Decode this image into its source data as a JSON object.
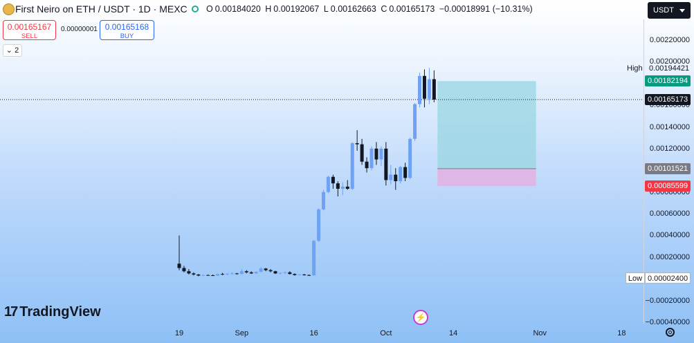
{
  "header": {
    "title": "First Neiro on ETH / USDT · 1D · MEXC",
    "ohlc": {
      "open_label": "O",
      "open": "0.00184020",
      "high_label": "H",
      "high": "0.00192067",
      "low_label": "L",
      "low": "0.00162663",
      "close_label": "C",
      "close": "0.00165173",
      "change": "−0.00018991 (−10.31%)"
    },
    "currency": "USDT"
  },
  "trade": {
    "sell_price": "0.00165167",
    "sell_label": "SELL",
    "spread": "0.00000001",
    "buy_price": "0.00165168",
    "buy_label": "BUY"
  },
  "indicators_toggle": "2",
  "branding": {
    "logo_text": "TradingView",
    "logo_mark": "17"
  },
  "price_tags": {
    "high_label": "High",
    "high": "0.00194421",
    "target": "0.00182194",
    "current": "0.00165173",
    "entry": "0.00101521",
    "stop": "0.00085599",
    "low_label": "Low",
    "low": "0.00002400"
  },
  "colors": {
    "up": "#6fa1f5",
    "down": "#131722",
    "target_tag": "#089981",
    "stop_tag": "#f23645",
    "entry_tag": "#787b86",
    "profit_zone": "#98d6e2",
    "loss_zone": "#e5aee0"
  },
  "chart_data": {
    "type": "candlestick",
    "y_ticks": [
      "0.00220000",
      "0.00200000",
      "0.00180000",
      "0.00160000",
      "0.00140000",
      "0.00120000",
      "0.00100000",
      "0.00080000",
      "0.00060000",
      "0.00040000",
      "0.00020000",
      "0.00000000",
      "−0.00020000",
      "−0.00040000"
    ],
    "x_ticks": [
      {
        "label": "19",
        "x_index": 0
      },
      {
        "label": "Sep",
        "x_index": 13
      },
      {
        "label": "16",
        "x_index": 28
      },
      {
        "label": "Oct",
        "x_index": 43
      },
      {
        "label": "14",
        "x_index": 57
      },
      {
        "label": "Nov",
        "x_index": 75
      },
      {
        "label": "18",
        "x_index": 92
      }
    ],
    "ylim": [
      -0.0004,
      0.0022
    ],
    "candles": [
      [
        0,
        0.00014,
        0.0004,
        8e-05,
        0.0001
      ],
      [
        1,
        0.0001,
        0.00012,
        6e-05,
        7e-05
      ],
      [
        2,
        7e-05,
        9e-05,
        4e-05,
        5e-05
      ],
      [
        3,
        5e-05,
        6e-05,
        3e-05,
        4e-05
      ],
      [
        4,
        4e-05,
        4.5e-05,
        2.4e-05,
        3e-05
      ],
      [
        5,
        3e-05,
        4e-05,
        2.5e-05,
        3.5e-05
      ],
      [
        6,
        3.5e-05,
        4e-05,
        3e-05,
        3.3e-05
      ],
      [
        7,
        3.3e-05,
        4e-05,
        2.8e-05,
        3e-05
      ],
      [
        8,
        3e-05,
        5e-05,
        2.5e-05,
        4.5e-05
      ],
      [
        9,
        4.5e-05,
        5.5e-05,
        3.5e-05,
        4e-05
      ],
      [
        10,
        4e-05,
        5e-05,
        3.5e-05,
        4.8e-05
      ],
      [
        11,
        4.8e-05,
        6e-05,
        4e-05,
        5e-05
      ],
      [
        12,
        5e-05,
        5.5e-05,
        4e-05,
        4.5e-05
      ],
      [
        13,
        4.5e-05,
        9e-05,
        4e-05,
        7e-05
      ],
      [
        14,
        7e-05,
        8e-05,
        5e-05,
        6e-05
      ],
      [
        15,
        6e-05,
        7e-05,
        4.5e-05,
        5e-05
      ],
      [
        16,
        5e-05,
        7e-05,
        4.5e-05,
        6.5e-05
      ],
      [
        17,
        6.5e-05,
        0.00011,
        6e-05,
        9.5e-05
      ],
      [
        18,
        9.5e-05,
        0.0001,
        7e-05,
        8e-05
      ],
      [
        19,
        8e-05,
        9e-05,
        6e-05,
        7e-05
      ],
      [
        20,
        7e-05,
        7.5e-05,
        4.5e-05,
        5e-05
      ],
      [
        21,
        5e-05,
        6e-05,
        4e-05,
        5.5e-05
      ],
      [
        22,
        5.5e-05,
        7e-05,
        4.5e-05,
        6e-05
      ],
      [
        23,
        6e-05,
        7e-05,
        4e-05,
        4.5e-05
      ],
      [
        24,
        4.5e-05,
        5e-05,
        3e-05,
        3.5e-05
      ],
      [
        25,
        3.5e-05,
        4.5e-05,
        3e-05,
        4e-05
      ],
      [
        26,
        4e-05,
        4.5e-05,
        3e-05,
        3.5e-05
      ],
      [
        27,
        3.5e-05,
        4e-05,
        2.8e-05,
        3.2e-05
      ],
      [
        28,
        3.2e-05,
        0.00036,
        3e-05,
        0.00035
      ],
      [
        29,
        0.00035,
        0.00065,
        0.00034,
        0.00064
      ],
      [
        30,
        0.00064,
        0.00082,
        0.00063,
        0.0008
      ],
      [
        31,
        0.0008,
        0.00095,
        0.00079,
        0.00094
      ],
      [
        32,
        0.00094,
        0.00096,
        0.00083,
        0.00088
      ],
      [
        33,
        0.00088,
        0.0009,
        0.00076,
        0.00083
      ],
      [
        34,
        0.00083,
        0.00089,
        0.00077,
        0.00085
      ],
      [
        35,
        0.00085,
        0.00091,
        0.00082,
        0.00083
      ],
      [
        36,
        0.00083,
        0.00126,
        0.00082,
        0.00125
      ],
      [
        37,
        0.00125,
        0.00137,
        0.00118,
        0.00124
      ],
      [
        38,
        0.00124,
        0.00129,
        0.00105,
        0.00108
      ],
      [
        39,
        0.00108,
        0.00112,
        0.00098,
        0.00102
      ],
      [
        40,
        0.00102,
        0.00122,
        0.001,
        0.0012
      ],
      [
        41,
        0.0012,
        0.00126,
        0.00105,
        0.0011
      ],
      [
        42,
        0.0011,
        0.00122,
        0.00104,
        0.0012
      ],
      [
        43,
        0.0012,
        0.00126,
        0.00086,
        0.00091
      ],
      [
        44,
        0.00091,
        0.00105,
        0.00087,
        0.00096
      ],
      [
        45,
        0.00096,
        0.00102,
        0.00082,
        0.0009
      ],
      [
        46,
        0.0009,
        0.00104,
        0.00088,
        0.00103
      ],
      [
        47,
        0.00103,
        0.00107,
        0.0009,
        0.00093
      ],
      [
        48,
        0.00093,
        0.0013,
        0.00092,
        0.00129
      ],
      [
        49,
        0.00129,
        0.00162,
        0.00127,
        0.00161
      ],
      [
        50,
        0.00161,
        0.0019,
        0.00158,
        0.00187
      ],
      [
        51,
        0.00187,
        0.00193,
        0.00158,
        0.00166
      ],
      [
        52,
        0.00166,
        0.001944,
        0.00161,
        0.00184
      ],
      [
        53,
        0.00184,
        0.001921,
        0.001627,
        0.001652
      ]
    ],
    "position": {
      "entry": 0.00101521,
      "target": 0.00182194,
      "stop": 0.00085599,
      "start_index": 54,
      "end_index": 67
    },
    "current_price": 0.00165173
  }
}
